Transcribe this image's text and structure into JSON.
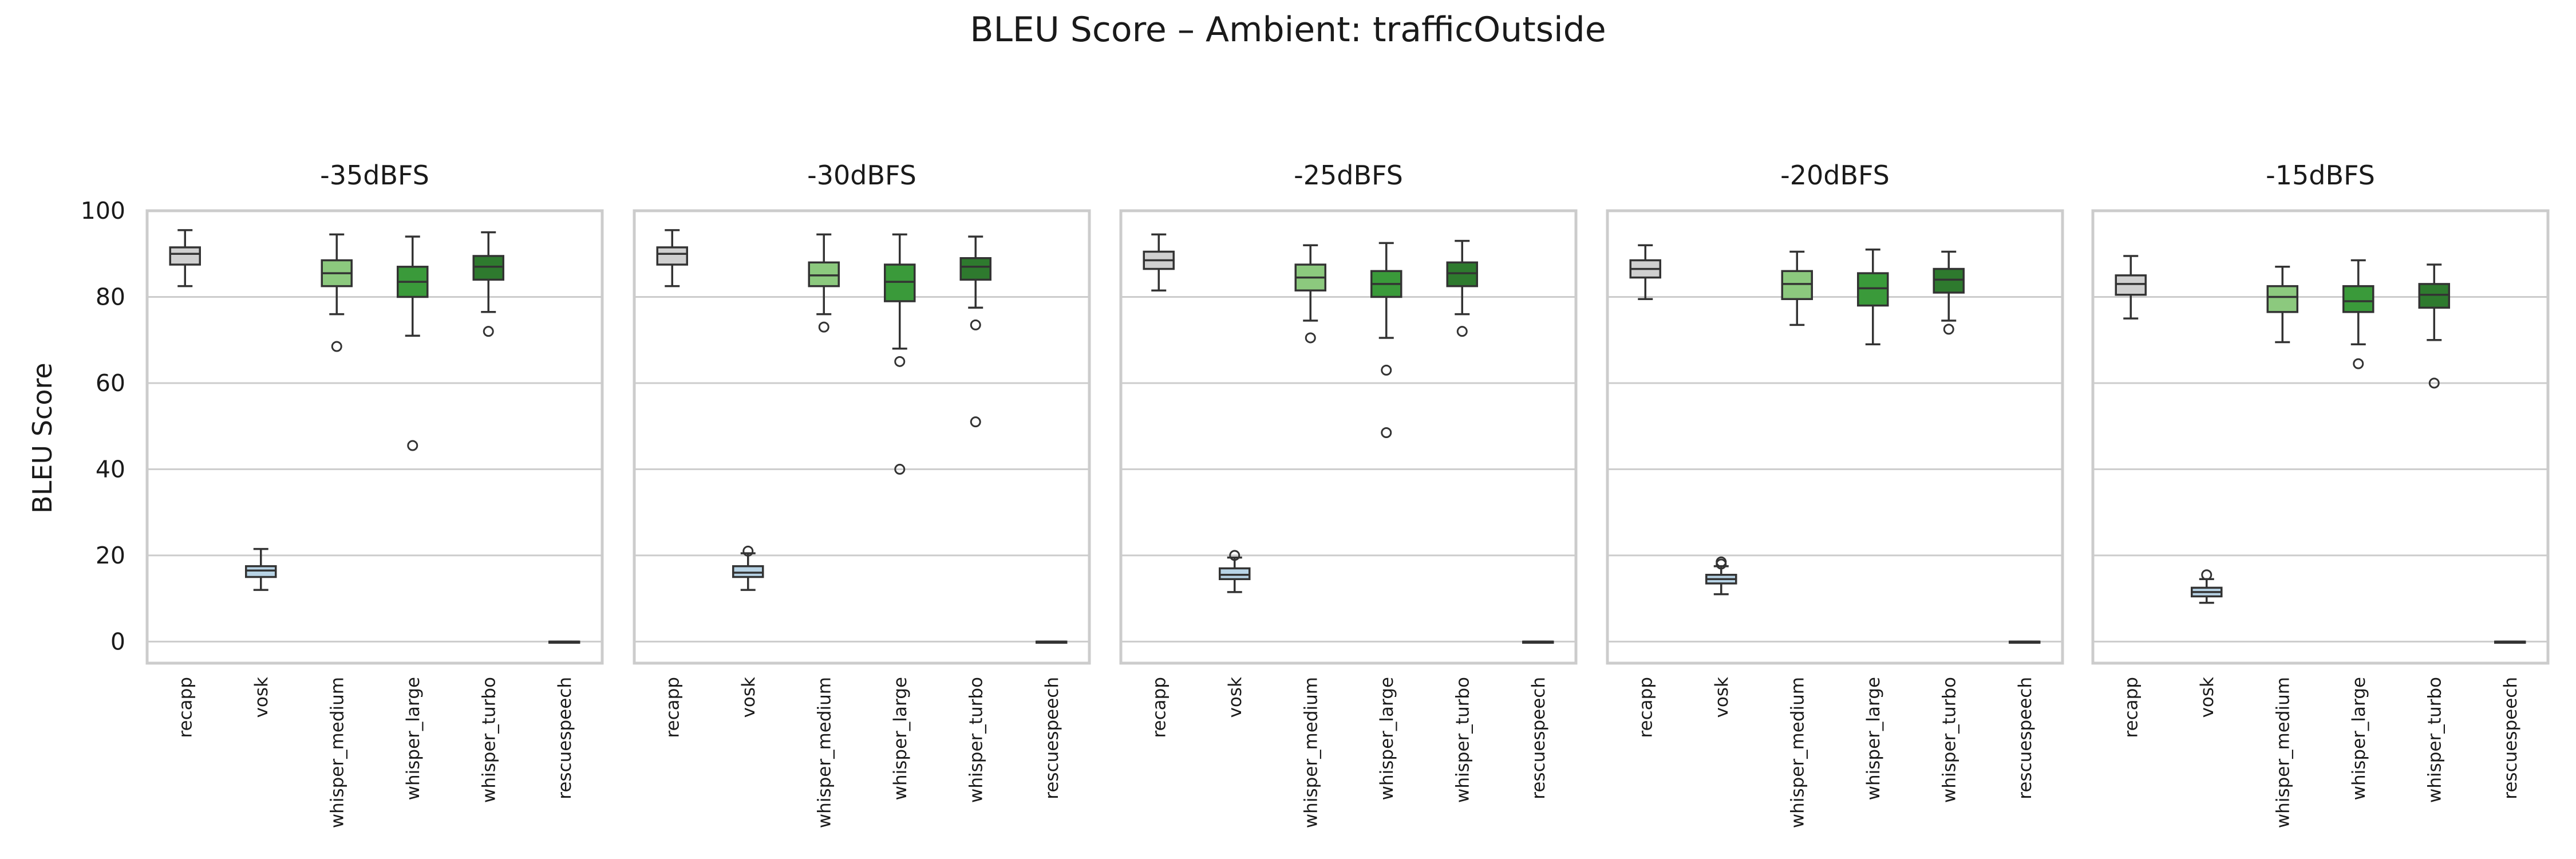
{
  "chart_data": {
    "type": "box",
    "title": "BLEU Score – Ambient: trafficOutside",
    "ylabel": "BLEU Score",
    "ylim": [
      -5,
      100
    ],
    "yticks": [
      0,
      20,
      40,
      60,
      80,
      100
    ],
    "grid": "horizontal",
    "categories": [
      "recapp",
      "vosk",
      "whisper_medium",
      "whisper_large",
      "whisper_turbo",
      "rescuespeech"
    ],
    "colors": {
      "recapp": "#d0d0d0",
      "vosk": "#b8d4e6",
      "whisper_medium": "#8cc97e",
      "whisper_large": "#3a9a3a",
      "whisper_turbo": "#2e7a2e",
      "rescuespeech": "#d0d0d0"
    },
    "panels": [
      {
        "title": "-35dBFS",
        "boxes": [
          {
            "name": "recapp",
            "whislo": 82.5,
            "q1": 87.5,
            "med": 90.0,
            "q3": 91.5,
            "whishi": 95.5,
            "fliers": []
          },
          {
            "name": "vosk",
            "whislo": 12.0,
            "q1": 15.0,
            "med": 16.5,
            "q3": 17.5,
            "whishi": 21.5,
            "fliers": []
          },
          {
            "name": "whisper_medium",
            "whislo": 76.0,
            "q1": 82.5,
            "med": 85.5,
            "q3": 88.5,
            "whishi": 94.5,
            "fliers": [
              68.5
            ]
          },
          {
            "name": "whisper_large",
            "whislo": 71.0,
            "q1": 80.0,
            "med": 83.5,
            "q3": 87.0,
            "whishi": 94.0,
            "fliers": [
              45.5
            ]
          },
          {
            "name": "whisper_turbo",
            "whislo": 76.5,
            "q1": 84.0,
            "med": 87.0,
            "q3": 89.5,
            "whishi": 95.0,
            "fliers": [
              72.0
            ]
          },
          {
            "name": "rescuespeech",
            "whislo": 0.0,
            "q1": 0.0,
            "med": 0.0,
            "q3": 0.0,
            "whishi": 0.0,
            "fliers": []
          }
        ]
      },
      {
        "title": "-30dBFS",
        "boxes": [
          {
            "name": "recapp",
            "whislo": 82.5,
            "q1": 87.5,
            "med": 90.0,
            "q3": 91.5,
            "whishi": 95.5,
            "fliers": []
          },
          {
            "name": "vosk",
            "whislo": 12.0,
            "q1": 15.0,
            "med": 16.0,
            "q3": 17.5,
            "whishi": 20.5,
            "fliers": [
              21.0
            ]
          },
          {
            "name": "whisper_medium",
            "whislo": 76.0,
            "q1": 82.5,
            "med": 85.0,
            "q3": 88.0,
            "whishi": 94.5,
            "fliers": [
              73.0
            ]
          },
          {
            "name": "whisper_large",
            "whislo": 68.0,
            "q1": 79.0,
            "med": 83.5,
            "q3": 87.5,
            "whishi": 94.5,
            "fliers": [
              65.0,
              40.0
            ]
          },
          {
            "name": "whisper_turbo",
            "whislo": 77.5,
            "q1": 84.0,
            "med": 87.0,
            "q3": 89.0,
            "whishi": 94.0,
            "fliers": [
              73.5,
              51.0
            ]
          },
          {
            "name": "rescuespeech",
            "whislo": 0.0,
            "q1": 0.0,
            "med": 0.0,
            "q3": 0.0,
            "whishi": 0.0,
            "fliers": []
          }
        ]
      },
      {
        "title": "-25dBFS",
        "boxes": [
          {
            "name": "recapp",
            "whislo": 81.5,
            "q1": 86.5,
            "med": 88.5,
            "q3": 90.5,
            "whishi": 94.5,
            "fliers": []
          },
          {
            "name": "vosk",
            "whislo": 11.5,
            "q1": 14.5,
            "med": 15.5,
            "q3": 17.0,
            "whishi": 19.5,
            "fliers": [
              20.0
            ]
          },
          {
            "name": "whisper_medium",
            "whislo": 74.5,
            "q1": 81.5,
            "med": 84.5,
            "q3": 87.5,
            "whishi": 92.0,
            "fliers": [
              70.5
            ]
          },
          {
            "name": "whisper_large",
            "whislo": 70.5,
            "q1": 80.0,
            "med": 83.0,
            "q3": 86.0,
            "whishi": 92.5,
            "fliers": [
              63.0,
              48.5
            ]
          },
          {
            "name": "whisper_turbo",
            "whislo": 76.0,
            "q1": 82.5,
            "med": 85.5,
            "q3": 88.0,
            "whishi": 93.0,
            "fliers": [
              72.0
            ]
          },
          {
            "name": "rescuespeech",
            "whislo": 0.0,
            "q1": 0.0,
            "med": 0.0,
            "q3": 0.0,
            "whishi": 0.0,
            "fliers": []
          }
        ]
      },
      {
        "title": "-20dBFS",
        "boxes": [
          {
            "name": "recapp",
            "whislo": 79.5,
            "q1": 84.5,
            "med": 86.5,
            "q3": 88.5,
            "whishi": 92.0,
            "fliers": []
          },
          {
            "name": "vosk",
            "whislo": 11.0,
            "q1": 13.5,
            "med": 14.5,
            "q3": 15.5,
            "whishi": 17.5,
            "fliers": [
              18.0,
              18.5
            ]
          },
          {
            "name": "whisper_medium",
            "whislo": 73.5,
            "q1": 79.5,
            "med": 83.0,
            "q3": 86.0,
            "whishi": 90.5,
            "fliers": []
          },
          {
            "name": "whisper_large",
            "whislo": 69.0,
            "q1": 78.0,
            "med": 82.0,
            "q3": 85.5,
            "whishi": 91.0,
            "fliers": []
          },
          {
            "name": "whisper_turbo",
            "whislo": 74.5,
            "q1": 81.0,
            "med": 84.0,
            "q3": 86.5,
            "whishi": 90.5,
            "fliers": [
              72.5
            ]
          },
          {
            "name": "rescuespeech",
            "whislo": 0.0,
            "q1": 0.0,
            "med": 0.0,
            "q3": 0.0,
            "whishi": 0.0,
            "fliers": []
          }
        ]
      },
      {
        "title": "-15dBFS",
        "boxes": [
          {
            "name": "recapp",
            "whislo": 75.0,
            "q1": 80.5,
            "med": 83.0,
            "q3": 85.0,
            "whishi": 89.5,
            "fliers": []
          },
          {
            "name": "vosk",
            "whislo": 9.0,
            "q1": 10.5,
            "med": 11.5,
            "q3": 12.5,
            "whishi": 14.5,
            "fliers": [
              15.5
            ]
          },
          {
            "name": "whisper_medium",
            "whislo": 69.5,
            "q1": 76.5,
            "med": 80.0,
            "q3": 82.5,
            "whishi": 87.0,
            "fliers": []
          },
          {
            "name": "whisper_large",
            "whislo": 69.0,
            "q1": 76.5,
            "med": 79.0,
            "q3": 82.5,
            "whishi": 88.5,
            "fliers": [
              64.5
            ]
          },
          {
            "name": "whisper_turbo",
            "whislo": 70.0,
            "q1": 77.5,
            "med": 80.5,
            "q3": 83.0,
            "whishi": 87.5,
            "fliers": [
              60.0
            ]
          },
          {
            "name": "rescuespeech",
            "whislo": 0.0,
            "q1": 0.0,
            "med": 0.0,
            "q3": 0.0,
            "whishi": 0.0,
            "fliers": []
          }
        ]
      }
    ]
  }
}
